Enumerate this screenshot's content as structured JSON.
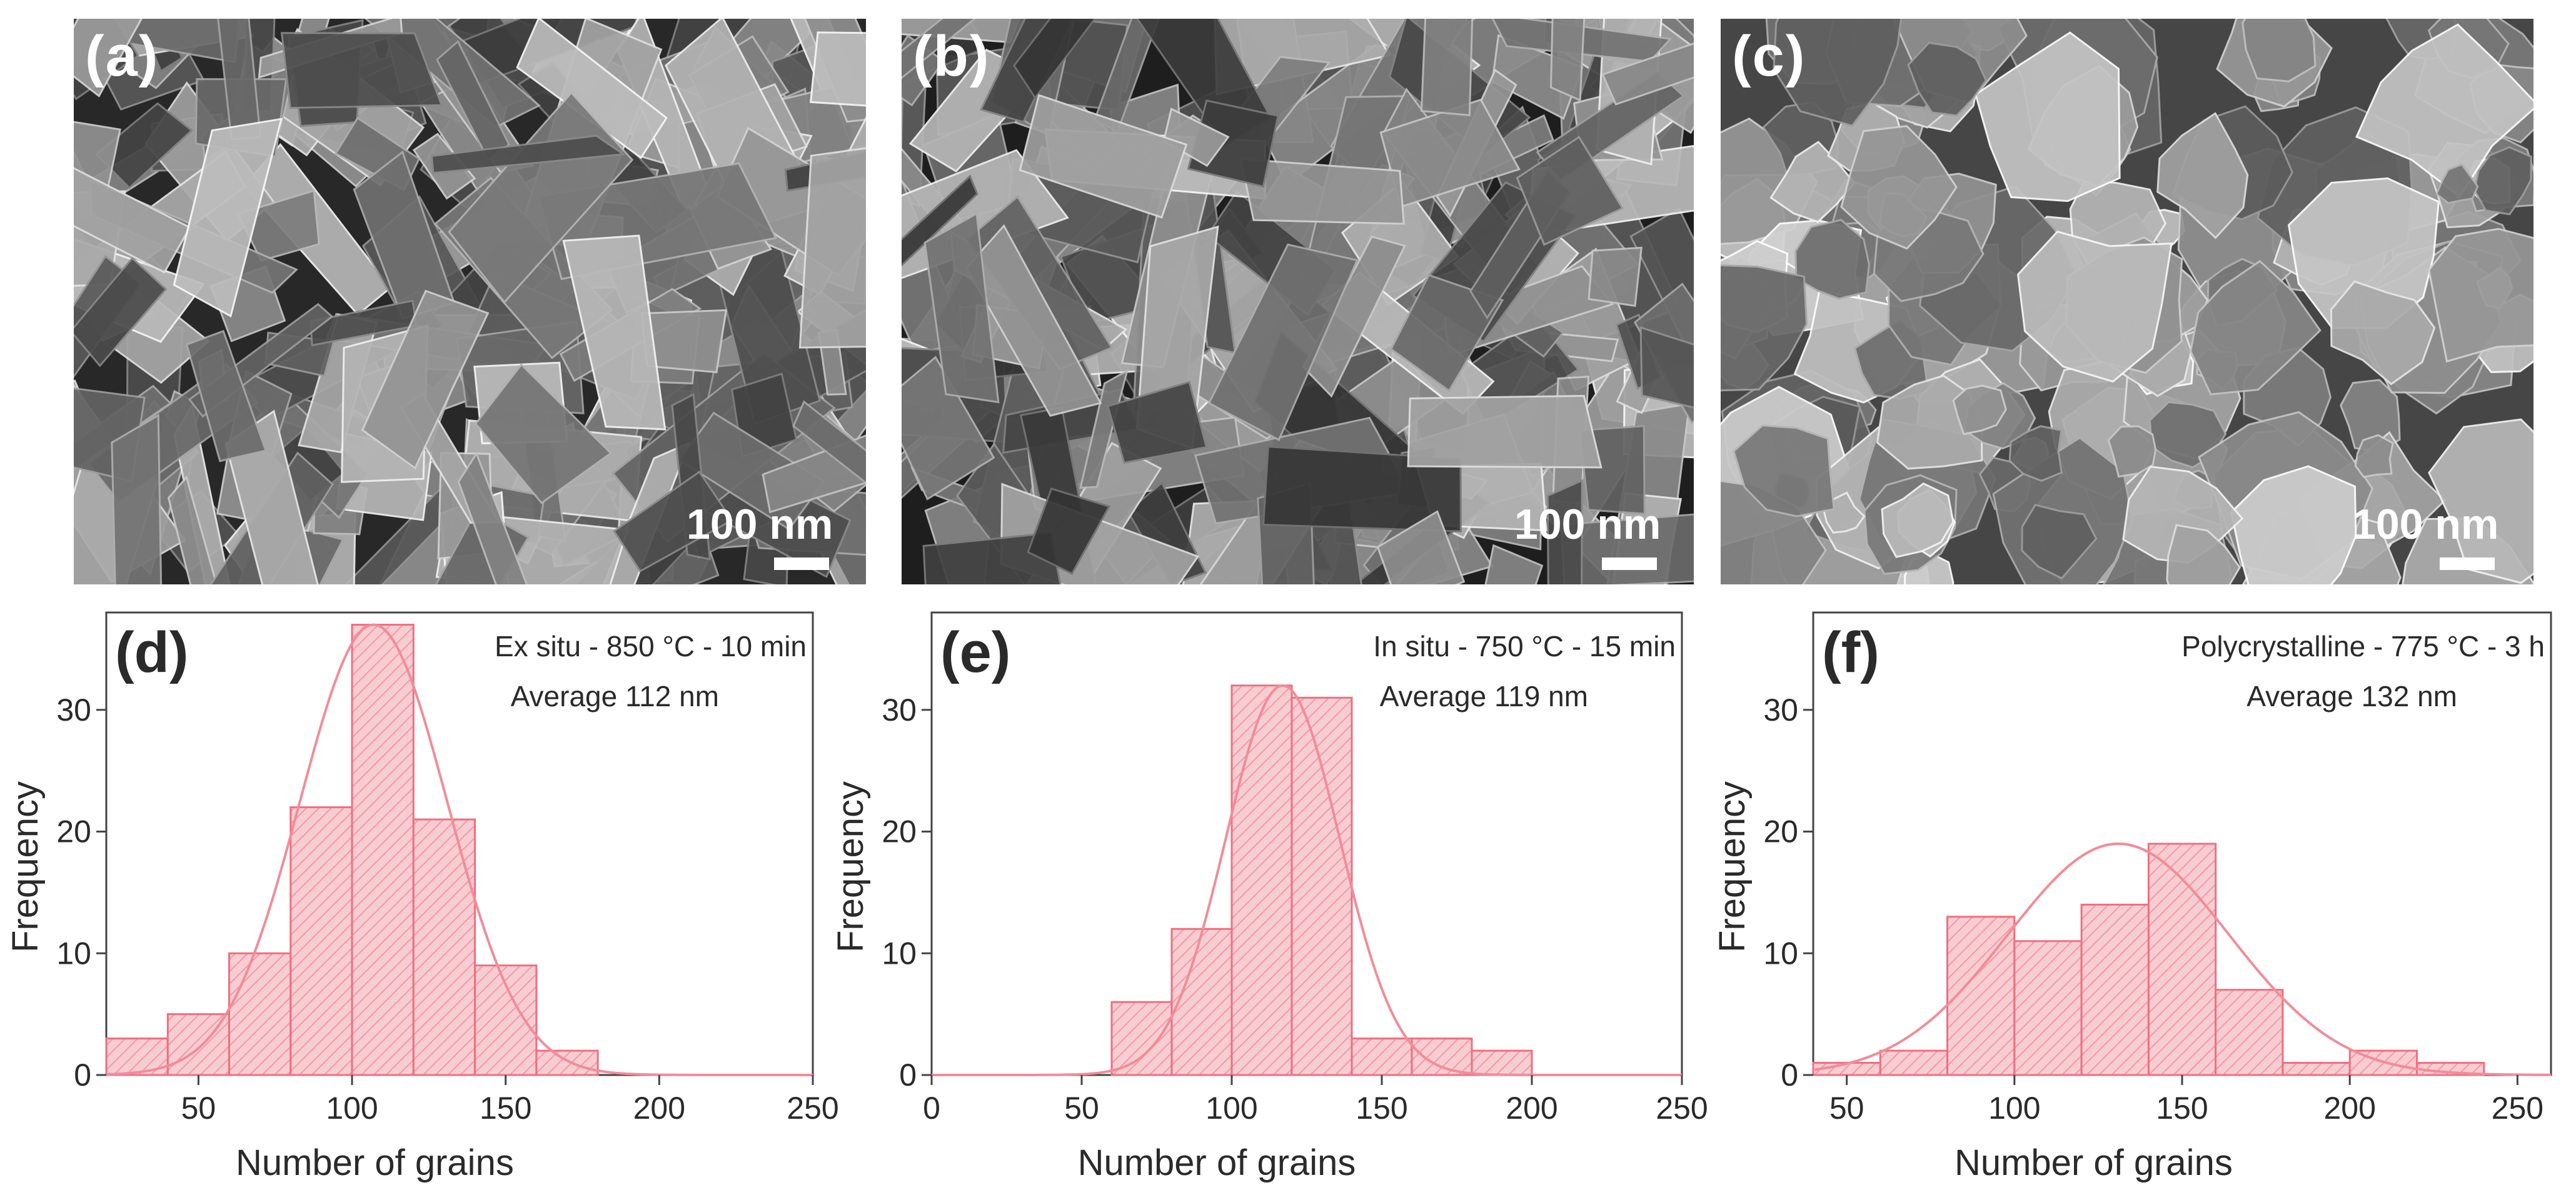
{
  "sem_panels": [
    {
      "label": "(a)",
      "scale_bar": "100 nm"
    },
    {
      "label": "(b)",
      "scale_bar": "100 nm"
    },
    {
      "label": "(c)",
      "scale_bar": "100 nm"
    }
  ],
  "colors": {
    "bar_fill": "#f8cdd2",
    "bar_hatch": "#f19aa5",
    "bar_edge": "#ef6f80",
    "fit_line": "#f28c98",
    "axis": "#444444"
  },
  "chart_data": [
    {
      "type": "bar",
      "panel_label": "(d)",
      "annotation": "Ex situ - 850 °C - 10 min",
      "average_label": "Average 112 nm",
      "xlabel": "Number of grains",
      "ylabel": "Frequency",
      "xlim": [
        20,
        250
      ],
      "ylim": [
        0,
        38
      ],
      "xticks": [
        50,
        100,
        150,
        200,
        250
      ],
      "yticks": [
        0,
        10,
        20,
        30
      ],
      "bin_width": 20,
      "bin_starts": [
        20,
        40,
        60,
        80,
        100,
        120,
        140,
        160
      ],
      "values": [
        3,
        5,
        10,
        22,
        37,
        21,
        9,
        2
      ],
      "fit": {
        "type": "gaussian",
        "mean": 107,
        "sigma": 24,
        "peak": 37
      }
    },
    {
      "type": "bar",
      "panel_label": "(e)",
      "annotation": "In situ - 750 °C - 15 min",
      "average_label": "Average 119 nm",
      "xlabel": "Number of grains",
      "ylabel": "Frequency",
      "xlim": [
        0,
        250
      ],
      "ylim": [
        0,
        38
      ],
      "xticks": [
        0,
        50,
        100,
        150,
        200,
        250
      ],
      "yticks": [
        0,
        10,
        20,
        30
      ],
      "bin_width": 20,
      "bin_starts": [
        60,
        80,
        100,
        120,
        140,
        160,
        180
      ],
      "values": [
        6,
        12,
        32,
        31,
        3,
        3,
        2
      ],
      "fit": {
        "type": "gaussian",
        "mean": 117,
        "sigma": 19,
        "peak": 32
      }
    },
    {
      "type": "bar",
      "panel_label": "(f)",
      "annotation": "Polycrystalline - 775 °C - 3 h",
      "average_label": "Average 132 nm",
      "xlabel": "Number of grains",
      "ylabel": "Frequency",
      "xlim": [
        40,
        260
      ],
      "ylim": [
        0,
        38
      ],
      "xticks": [
        50,
        100,
        150,
        200,
        250
      ],
      "yticks": [
        0,
        10,
        20,
        30
      ],
      "bin_width": 20,
      "bin_starts": [
        40,
        60,
        80,
        100,
        120,
        140,
        160,
        180,
        200,
        220
      ],
      "values": [
        1,
        2,
        13,
        11,
        14,
        19,
        7,
        1,
        2,
        1
      ],
      "fit": {
        "type": "gaussian",
        "mean": 131,
        "sigma": 33,
        "peak": 19
      }
    }
  ]
}
